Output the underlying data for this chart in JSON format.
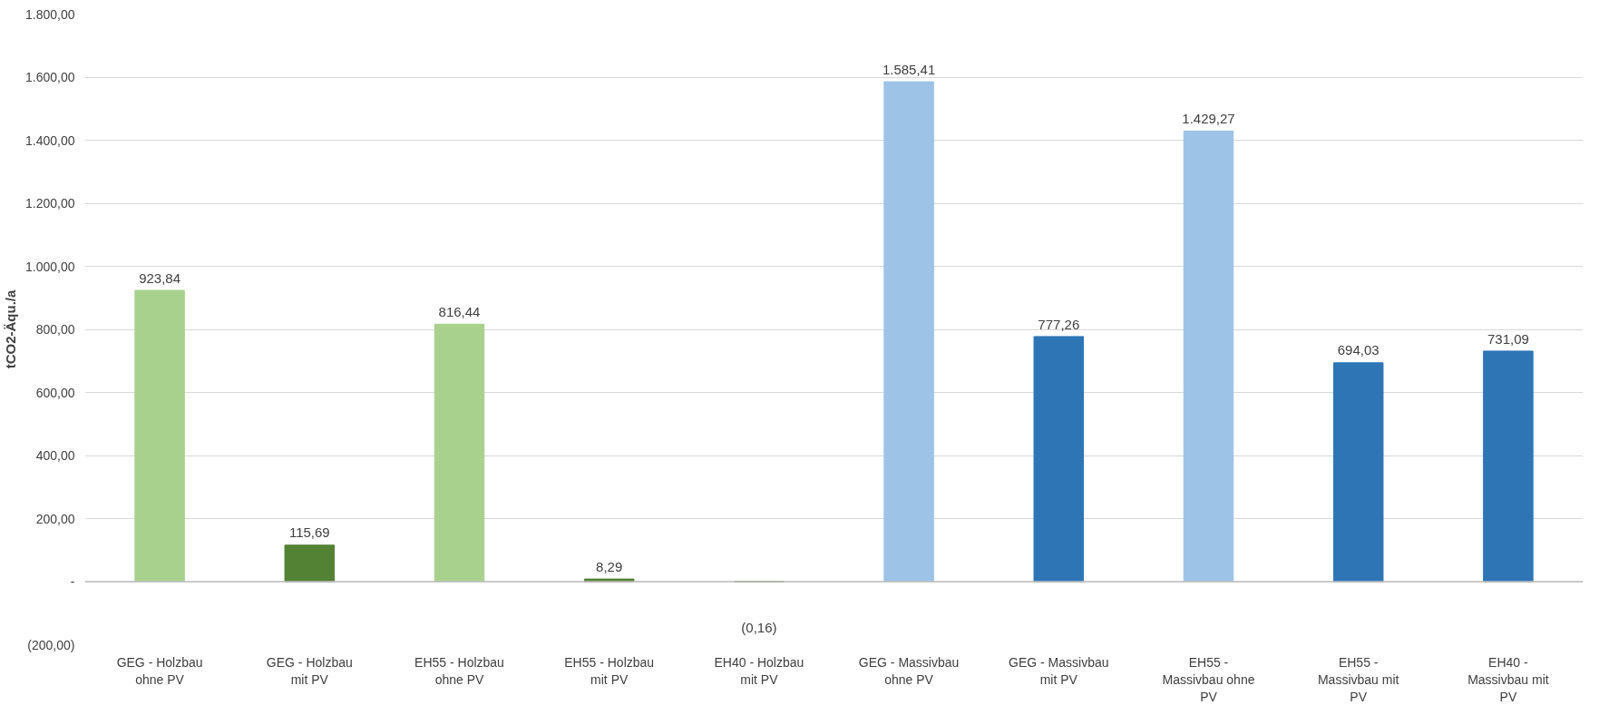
{
  "chart_data": {
    "type": "bar",
    "ylabel": "tCO2-Äqu./a",
    "categories": [
      "GEG - Holzbau ohne PV",
      "GEG - Holzbau mit PV",
      "EH55 - Holzbau ohne PV",
      "EH55 - Holzbau mit PV",
      "EH40 - Holzbau mit PV",
      "GEG - Massivbau ohne PV",
      "GEG - Massivbau mit PV",
      "EH55 - Massivbau ohne PV",
      "EH55 - Massivbau mit PV",
      "EH40 - Massivbau mit PV"
    ],
    "values": [
      923.84,
      115.69,
      816.44,
      8.29,
      -0.16,
      1585.41,
      777.26,
      1429.27,
      694.03,
      731.09
    ],
    "colors": [
      "#a9d18e",
      "#548235",
      "#a9d18e",
      "#548235",
      "#548235",
      "#9dc3e6",
      "#2e75b6",
      "#9dc3e6",
      "#2e75b6",
      "#2e75b6"
    ],
    "value_labels": [
      "923,84",
      "115,69",
      "816,44",
      "8,29",
      "(0,16)",
      "1.585,41",
      "777,26",
      "1.429,27",
      "694,03",
      "731,09"
    ],
    "ylim": [
      -200,
      1800
    ],
    "yticks": [
      {
        "value": -200,
        "label": "(200,00)"
      },
      {
        "value": 0,
        "label": "-"
      },
      {
        "value": 200,
        "label": "200,00"
      },
      {
        "value": 400,
        "label": "400,00"
      },
      {
        "value": 600,
        "label": "600,00"
      },
      {
        "value": 800,
        "label": "800,00"
      },
      {
        "value": 1000,
        "label": "1.000,00"
      },
      {
        "value": 1200,
        "label": "1.200,00"
      },
      {
        "value": 1400,
        "label": "1.400,00"
      },
      {
        "value": 1600,
        "label": "1.600,00"
      },
      {
        "value": 1800,
        "label": "1.800,00"
      }
    ],
    "grid": "y"
  }
}
